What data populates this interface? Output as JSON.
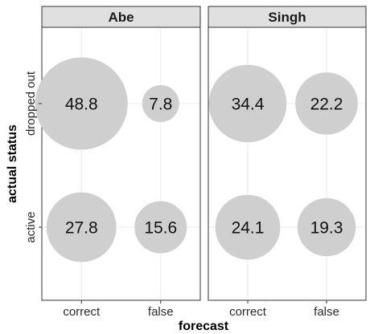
{
  "chart_data": {
    "type": "scatter",
    "subtype": "bubble",
    "xlabel": "forecast",
    "ylabel": "actual status",
    "x_categories": [
      "correct",
      "false"
    ],
    "y_categories": [
      "active",
      "dropped out"
    ],
    "panels": [
      {
        "name": "Abe",
        "points": [
          {
            "x": "correct",
            "y": "dropped out",
            "value": 48.8,
            "label": "48.8"
          },
          {
            "x": "false",
            "y": "dropped out",
            "value": 7.8,
            "label": "7.8"
          },
          {
            "x": "correct",
            "y": "active",
            "value": 27.8,
            "label": "27.8"
          },
          {
            "x": "false",
            "y": "active",
            "value": 15.6,
            "label": "15.6"
          }
        ]
      },
      {
        "name": "Singh",
        "points": [
          {
            "x": "correct",
            "y": "dropped out",
            "value": 34.4,
            "label": "34.4"
          },
          {
            "x": "false",
            "y": "dropped out",
            "value": 22.2,
            "label": "22.2"
          },
          {
            "x": "correct",
            "y": "active",
            "value": 24.1,
            "label": "24.1"
          },
          {
            "x": "false",
            "y": "active",
            "value": 19.3,
            "label": "19.3"
          }
        ]
      }
    ],
    "colors": {
      "bubble": "#cfcfcf",
      "strip": "#e0e0e0"
    },
    "grid": true,
    "legend": "none"
  }
}
